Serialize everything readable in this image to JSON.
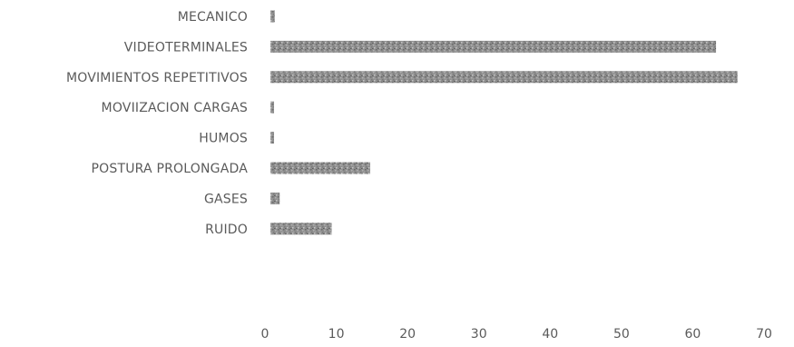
{
  "chart_data": {
    "type": "bar",
    "orientation": "horizontal",
    "categories": [
      "MECANICO",
      "VIDEOTERMINALES",
      "MOVIMIENTOS REPETITIVOS",
      "MOVIIZACION CARGAS",
      "HUMOS",
      "POSTURA PROLONGADA",
      "GASES",
      "RUIDO"
    ],
    "values": [
      0.6,
      62.5,
      65.5,
      0.5,
      0.5,
      14,
      1.3,
      8.6
    ],
    "xlim": [
      0,
      70
    ],
    "x_ticks": [
      "0",
      "10",
      "20",
      "30",
      "40",
      "50",
      "60",
      "70"
    ],
    "title": "",
    "xlabel": "",
    "ylabel": "",
    "grid": false,
    "legend": "none",
    "bar_color": "#8f8f8f"
  }
}
